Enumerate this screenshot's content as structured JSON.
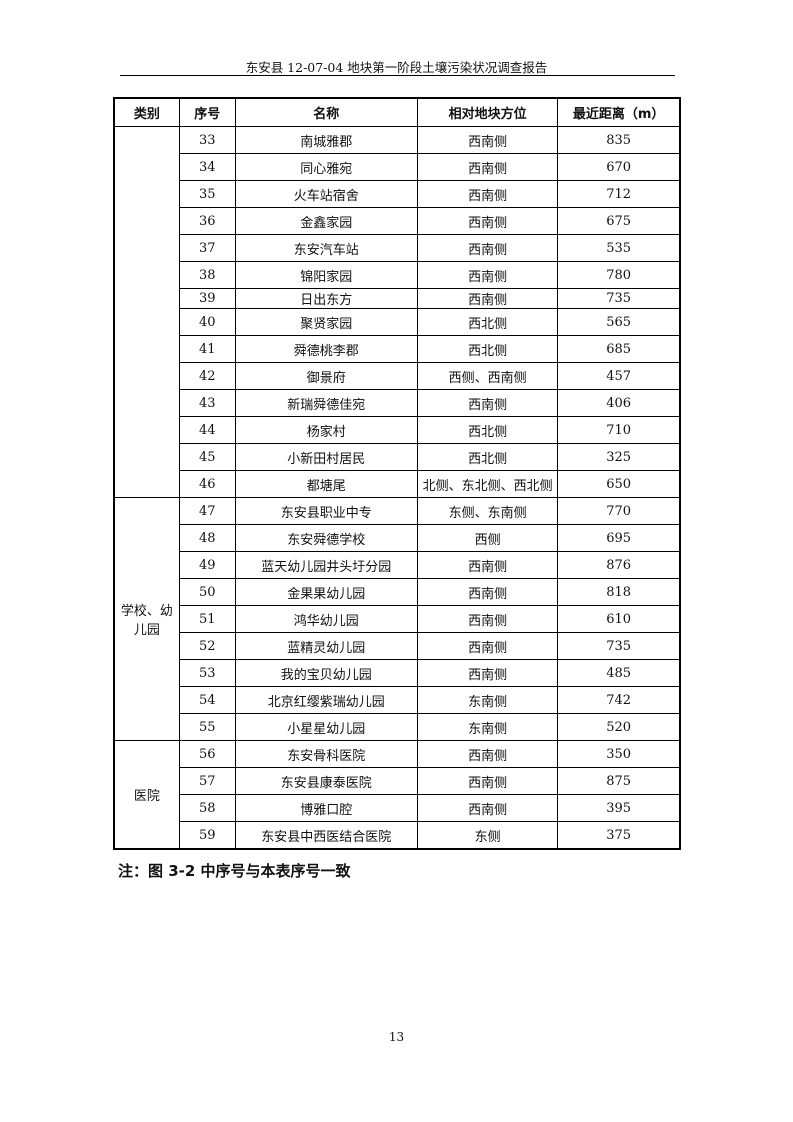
{
  "header": {
    "title": "东安县 12-07-04 地块第一阶段土壤污染状况调查报告"
  },
  "table": {
    "columns": [
      "类别",
      "序号",
      "名称",
      "相对地块方位",
      "最近距离（m）"
    ],
    "groups": [
      {
        "category": "",
        "rows": [
          {
            "no": "33",
            "name": "南城雅郡",
            "direction": "西南侧",
            "distance": "835"
          },
          {
            "no": "34",
            "name": "同心雅宛",
            "direction": "西南侧",
            "distance": "670"
          },
          {
            "no": "35",
            "name": "火车站宿舍",
            "direction": "西南侧",
            "distance": "712"
          },
          {
            "no": "36",
            "name": "金鑫家园",
            "direction": "西南侧",
            "distance": "675"
          },
          {
            "no": "37",
            "name": "东安汽车站",
            "direction": "西南侧",
            "distance": "535"
          },
          {
            "no": "38",
            "name": "锦阳家园",
            "direction": "西南侧",
            "distance": "780"
          },
          {
            "no": "39",
            "name": "日出东方",
            "direction": "西南侧",
            "distance": "735",
            "short": true
          },
          {
            "no": "40",
            "name": "聚贤家园",
            "direction": "西北侧",
            "distance": "565"
          },
          {
            "no": "41",
            "name": "舜德桃李郡",
            "direction": "西北侧",
            "distance": "685"
          },
          {
            "no": "42",
            "name": "御景府",
            "direction": "西侧、西南侧",
            "distance": "457"
          },
          {
            "no": "43",
            "name": "新瑞舜德佳宛",
            "direction": "西南侧",
            "distance": "406"
          },
          {
            "no": "44",
            "name": "杨家村",
            "direction": "西北侧",
            "distance": "710"
          },
          {
            "no": "45",
            "name": "小新田村居民",
            "direction": "西北侧",
            "distance": "325"
          },
          {
            "no": "46",
            "name": "都塘尾",
            "direction": "北侧、东北侧、西北侧",
            "distance": "650"
          }
        ]
      },
      {
        "category": "学校、幼儿园",
        "rows": [
          {
            "no": "47",
            "name": "东安县职业中专",
            "direction": "东侧、东南侧",
            "distance": "770"
          },
          {
            "no": "48",
            "name": "东安舜德学校",
            "direction": "西侧",
            "distance": "695"
          },
          {
            "no": "49",
            "name": "蓝天幼儿园井头圩分园",
            "direction": "西南侧",
            "distance": "876"
          },
          {
            "no": "50",
            "name": "金果果幼儿园",
            "direction": "西南侧",
            "distance": "818"
          },
          {
            "no": "51",
            "name": "鸿华幼儿园",
            "direction": "西南侧",
            "distance": "610"
          },
          {
            "no": "52",
            "name": "蓝精灵幼儿园",
            "direction": "西南侧",
            "distance": "735"
          },
          {
            "no": "53",
            "name": "我的宝贝幼儿园",
            "direction": "西南侧",
            "distance": "485"
          },
          {
            "no": "54",
            "name": "北京红缨紫瑞幼儿园",
            "direction": "东南侧",
            "distance": "742"
          },
          {
            "no": "55",
            "name": "小星星幼儿园",
            "direction": "东南侧",
            "distance": "520"
          }
        ]
      },
      {
        "category": "医院",
        "rows": [
          {
            "no": "56",
            "name": "东安骨科医院",
            "direction": "西南侧",
            "distance": "350"
          },
          {
            "no": "57",
            "name": "东安县康泰医院",
            "direction": "西南侧",
            "distance": "875"
          },
          {
            "no": "58",
            "name": "博雅口腔",
            "direction": "西南侧",
            "distance": "395"
          },
          {
            "no": "59",
            "name": "东安县中西医结合医院",
            "direction": "东侧",
            "distance": "375"
          }
        ]
      }
    ]
  },
  "note": "注：图 3-2 中序号与本表序号一致",
  "page_number": "13"
}
